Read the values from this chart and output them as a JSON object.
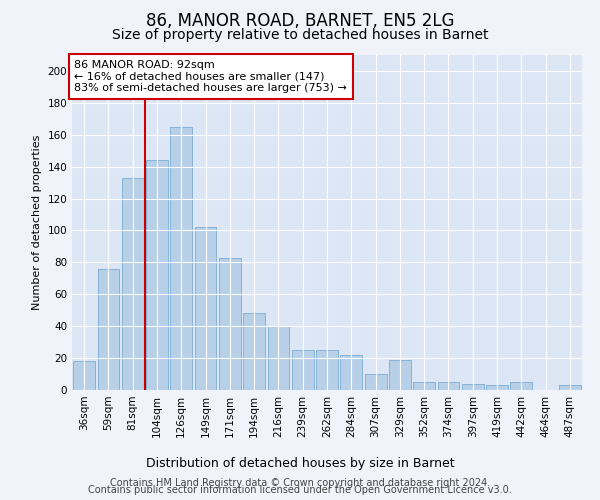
{
  "title1": "86, MANOR ROAD, BARNET, EN5 2LG",
  "title2": "Size of property relative to detached houses in Barnet",
  "xlabel": "Distribution of detached houses by size in Barnet",
  "ylabel": "Number of detached properties",
  "categories": [
    "36sqm",
    "59sqm",
    "81sqm",
    "104sqm",
    "126sqm",
    "149sqm",
    "171sqm",
    "194sqm",
    "216sqm",
    "239sqm",
    "262sqm",
    "284sqm",
    "307sqm",
    "329sqm",
    "352sqm",
    "374sqm",
    "397sqm",
    "419sqm",
    "442sqm",
    "464sqm",
    "487sqm"
  ],
  "values": [
    18,
    76,
    133,
    144,
    165,
    102,
    83,
    48,
    40,
    25,
    25,
    22,
    10,
    19,
    5,
    5,
    4,
    3,
    5,
    0,
    3
  ],
  "bar_color": "#b8cfe8",
  "bar_edge_color": "#7aadd4",
  "property_line_x": 2.5,
  "annotation_text": "86 MANOR ROAD: 92sqm\n← 16% of detached houses are smaller (147)\n83% of semi-detached houses are larger (753) →",
  "annotation_box_color": "#ffffff",
  "annotation_box_edge_color": "#cc0000",
  "vline_color": "#cc0000",
  "ylim": [
    0,
    210
  ],
  "yticks": [
    0,
    20,
    40,
    60,
    80,
    100,
    120,
    140,
    160,
    180,
    200
  ],
  "fig_bg_color": "#f0f4fa",
  "axes_bg_color": "#dce6f5",
  "grid_color": "#ffffff",
  "footer1": "Contains HM Land Registry data © Crown copyright and database right 2024.",
  "footer2": "Contains public sector information licensed under the Open Government Licence v3.0.",
  "title1_fontsize": 12,
  "title2_fontsize": 10,
  "xlabel_fontsize": 9,
  "ylabel_fontsize": 8,
  "tick_fontsize": 7.5,
  "annotation_fontsize": 8,
  "footer_fontsize": 7
}
